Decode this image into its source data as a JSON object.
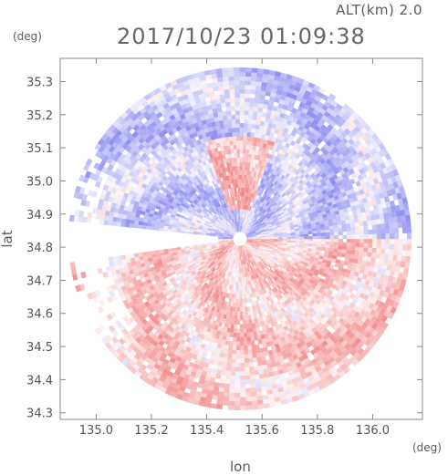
{
  "header": {
    "altitude_label": "ALT(km) 2.0",
    "datetime": "2017/10/23 01:09:38"
  },
  "chart_data": {
    "type": "heatmap",
    "title": "2017/10/23 01:09:38",
    "subtitle": "ALT(km) 2.0",
    "xlabel": "lon",
    "ylabel": "lat",
    "x_unit": "(deg)",
    "y_unit": "(deg)",
    "xlim": [
      134.87,
      136.18
    ],
    "ylim": [
      34.28,
      35.37
    ],
    "x_ticks": [
      135.0,
      135.2,
      135.4,
      135.6,
      135.8,
      136.0
    ],
    "x_tick_labels": [
      "135.0",
      "135.2",
      "135.4",
      "135.6",
      "135.8",
      "136.0"
    ],
    "y_ticks": [
      34.3,
      34.4,
      34.5,
      34.6,
      34.7,
      34.8,
      34.9,
      35.0,
      35.1,
      35.2,
      35.3
    ],
    "y_tick_labels": [
      "34.3",
      "34.4",
      "34.5",
      "34.6",
      "34.7",
      "34.8",
      "34.9",
      "35.0",
      "35.1",
      "35.2",
      "35.3"
    ],
    "radar_center": {
      "lon": 135.52,
      "lat": 34.825
    },
    "radar_range_deg": 0.62,
    "colors": {
      "positive": "#f07878",
      "negative": "#7878f0",
      "neutral": "#ffffff"
    },
    "grid": false,
    "legend": "none"
  }
}
